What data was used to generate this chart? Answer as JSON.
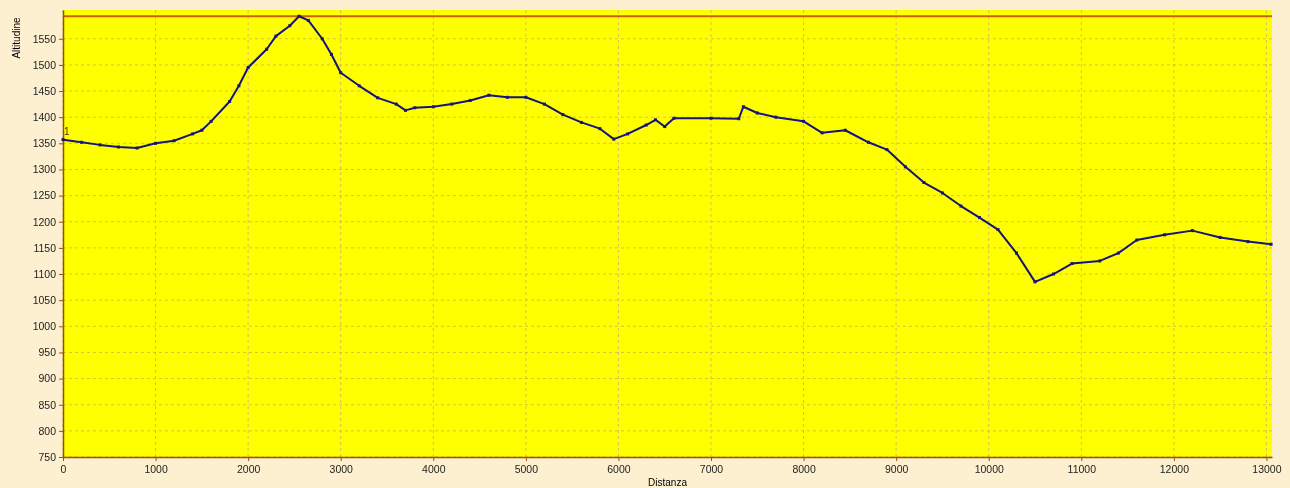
{
  "chart_data": {
    "type": "line",
    "xlabel": "Distanza",
    "ylabel": "Altitudine",
    "xlim": [
      0,
      13060
    ],
    "ylim": [
      750,
      1605
    ],
    "xticks": [
      0,
      1000,
      2000,
      3000,
      4000,
      5000,
      6000,
      7000,
      8000,
      9000,
      10000,
      11000,
      12000,
      13000
    ],
    "yticks": [
      750,
      800,
      850,
      900,
      950,
      1000,
      1050,
      1100,
      1150,
      1200,
      1250,
      1300,
      1350,
      1400,
      1450,
      1500,
      1550
    ],
    "grid": true,
    "marker": "square",
    "line_style": "solid",
    "ref_lines": [
      {
        "axis": "y",
        "value": 1593,
        "color": "#c86400"
      }
    ],
    "annotations": [
      "1"
    ],
    "series": [
      {
        "color": "#14147a",
        "x": [
          0,
          200,
          400,
          600,
          800,
          1000,
          1200,
          1400,
          1500,
          1600,
          1800,
          1900,
          2000,
          2200,
          2300,
          2450,
          2550,
          2650,
          2800,
          2900,
          3000,
          3200,
          3400,
          3600,
          3700,
          3800,
          4000,
          4200,
          4400,
          4600,
          4800,
          5000,
          5200,
          5400,
          5600,
          5800,
          5950,
          6100,
          6300,
          6400,
          6500,
          6600,
          7000,
          7300,
          7350,
          7500,
          7700,
          8000,
          8200,
          8450,
          8700,
          8900,
          9100,
          9300,
          9500,
          9700,
          9900,
          10100,
          10300,
          10500,
          10700,
          10900,
          11200,
          11400,
          11600,
          11900,
          12200,
          12500,
          12800,
          13050
        ],
        "values": [
          1357,
          1352,
          1347,
          1343,
          1341,
          1350,
          1355,
          1368,
          1375,
          1392,
          1430,
          1460,
          1495,
          1530,
          1555,
          1575,
          1593,
          1585,
          1550,
          1520,
          1485,
          1460,
          1437,
          1425,
          1413,
          1418,
          1420,
          1425,
          1432,
          1442,
          1438,
          1438,
          1425,
          1405,
          1390,
          1378,
          1358,
          1368,
          1385,
          1395,
          1382,
          1398,
          1398,
          1397,
          1420,
          1408,
          1400,
          1392,
          1370,
          1375,
          1352,
          1338,
          1305,
          1275,
          1255,
          1230,
          1208,
          1185,
          1140,
          1085,
          1100,
          1120,
          1125,
          1140,
          1165,
          1175,
          1183,
          1170,
          1162,
          1157
        ]
      }
    ]
  }
}
